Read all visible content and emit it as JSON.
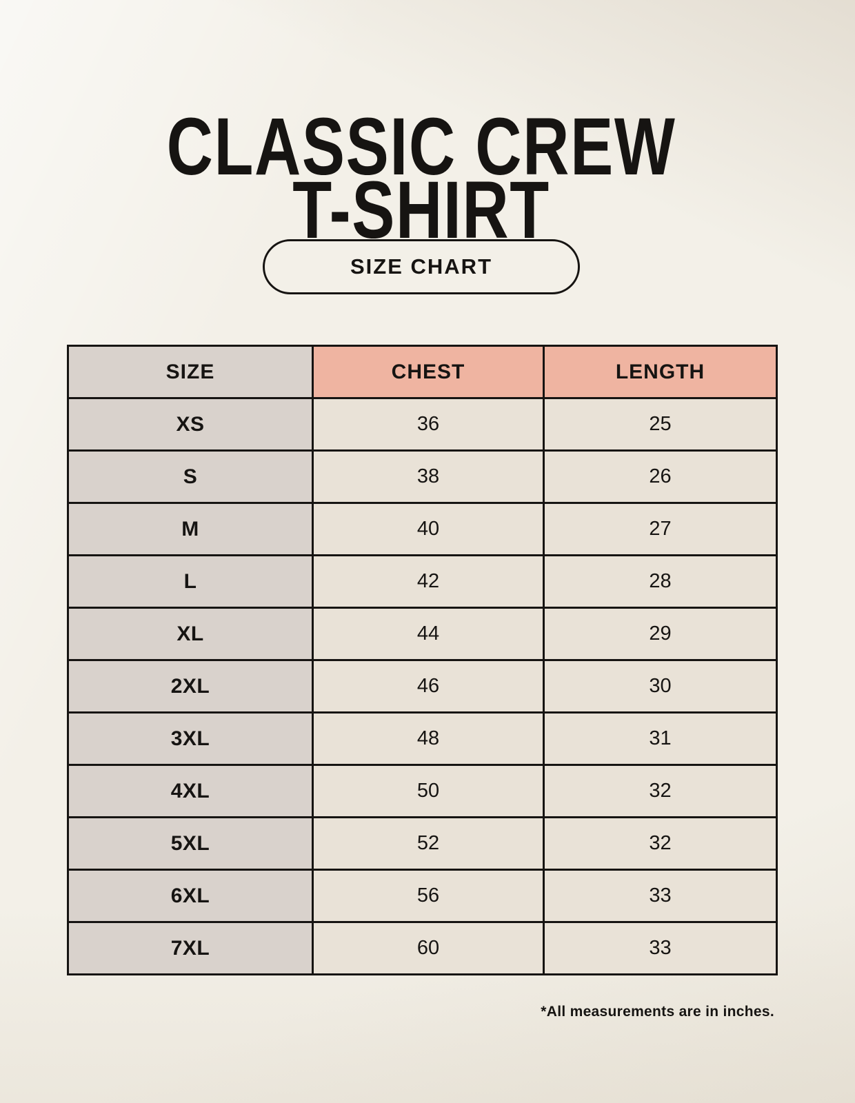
{
  "title": {
    "line1": "CLASSIC CREW",
    "line2": "T-SHIRT"
  },
  "badge": {
    "label": "SIZE CHART"
  },
  "footnote": "*All measurements are in inches.",
  "colors": {
    "page_bg": "#f3f0e8",
    "ink": "#161412",
    "accent": "#efb4a1",
    "size_col_bg": "#d9d2cc",
    "cell_bg": "#e9e2d7"
  },
  "chart_data": {
    "type": "table",
    "title": "CLASSIC CREW T-SHIRT",
    "subtitle": "SIZE CHART",
    "columns": [
      "SIZE",
      "CHEST",
      "LENGTH"
    ],
    "units": "inches",
    "rows": [
      [
        "XS",
        36,
        25
      ],
      [
        "S",
        38,
        26
      ],
      [
        "M",
        40,
        27
      ],
      [
        "L",
        42,
        28
      ],
      [
        "XL",
        44,
        29
      ],
      [
        "2XL",
        46,
        30
      ],
      [
        "3XL",
        48,
        31
      ],
      [
        "4XL",
        50,
        32
      ],
      [
        "5XL",
        52,
        32
      ],
      [
        "6XL",
        56,
        33
      ],
      [
        "7XL",
        60,
        33
      ]
    ],
    "note": "*All measurements are in inches."
  }
}
